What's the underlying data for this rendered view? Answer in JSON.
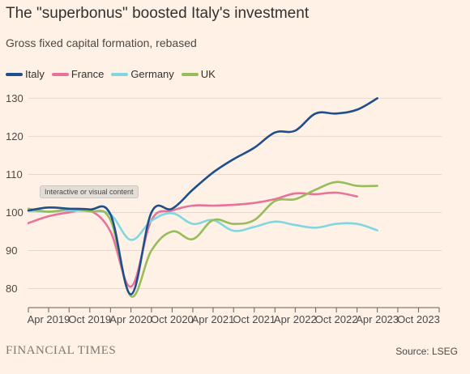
{
  "title": "The \"superbonus\" boosted Italy's investment",
  "subtitle": "Gross fixed capital formation, rebased",
  "badge": "Interactive or visual content",
  "branding": "FINANCIAL TIMES",
  "source": "Source: LSEG",
  "chart_data": {
    "type": "line",
    "title": "The \"superbonus\" boosted Italy's investment",
    "subtitle": "Gross fixed capital formation, rebased",
    "x": [
      "2019-01-01",
      "2019-04-01",
      "2019-07-01",
      "2019-10-01",
      "2020-01-01",
      "2020-04-01",
      "2020-07-01",
      "2020-10-01",
      "2021-01-01",
      "2021-04-01",
      "2021-07-01",
      "2021-10-01",
      "2022-01-01",
      "2022-04-01",
      "2022-07-01",
      "2022-10-01",
      "2023-01-01",
      "2023-04-01",
      "2023-07-01",
      "2023-10-01",
      "2024-01-01"
    ],
    "x_ticks": [
      "Apr 2019",
      "Oct 2019",
      "Apr 2020",
      "Oct 2020",
      "Apr 2021",
      "Oct 2021",
      "Apr 2022",
      "Oct 2022",
      "Apr 2023",
      "Oct 2023"
    ],
    "ylim": [
      75,
      132
    ],
    "y_ticks": [
      80,
      90,
      100,
      110,
      120,
      130
    ],
    "grid": true,
    "legend": "top-left",
    "series": [
      {
        "name": "Italy",
        "color": "#1f4e8c",
        "values": [
          100.5,
          101.3,
          101.0,
          100.8,
          99.5,
          78.5,
          100.0,
          101.0,
          106.0,
          110.5,
          114.0,
          117.0,
          121.0,
          121.5,
          126.0,
          126.0,
          127.0,
          130.0,
          null,
          null,
          null
        ]
      },
      {
        "name": "France",
        "color": "#e8729a",
        "values": [
          97.2,
          99.0,
          100.0,
          100.5,
          95.0,
          80.5,
          98.0,
          100.5,
          101.8,
          101.8,
          102.0,
          102.5,
          103.5,
          105.0,
          104.8,
          105.2,
          104.2,
          null,
          null,
          null,
          null
        ]
      },
      {
        "name": "Germany",
        "color": "#7fd8e0",
        "values": [
          100.5,
          100.2,
          100.5,
          100.3,
          99.5,
          92.8,
          97.8,
          99.8,
          97.0,
          98.0,
          95.2,
          96.2,
          97.6,
          96.7,
          96.0,
          97.0,
          97.0,
          95.3,
          null,
          null,
          null
        ]
      },
      {
        "name": "UK",
        "color": "#96bd5a",
        "values": [
          101.0,
          100.2,
          100.8,
          100.3,
          98.0,
          78.0,
          90.0,
          95.0,
          93.0,
          98.0,
          97.0,
          98.0,
          103.0,
          103.5,
          106.0,
          108.0,
          107.0,
          107.0,
          null,
          null,
          null
        ]
      }
    ]
  }
}
